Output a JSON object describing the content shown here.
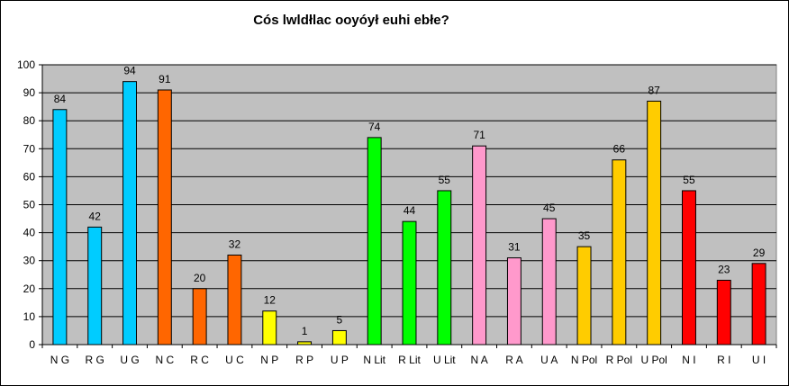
{
  "chart_data": {
    "type": "bar",
    "title": "Cós lwldłlac ooyóył euhi ebłe?",
    "xlabel": "",
    "ylabel": "",
    "ylim": [
      0,
      100
    ],
    "y_ticks": [
      0,
      10,
      20,
      30,
      40,
      50,
      60,
      70,
      80,
      90,
      100
    ],
    "grid": true,
    "legend": "none",
    "plot_background": "#c0c0c0",
    "categories": [
      "N G",
      "R G",
      "U G",
      "N C",
      "R C",
      "U C",
      "N P",
      "R P",
      "U P",
      "N Lit",
      "R Lit",
      "U Lit",
      "N A",
      "R A",
      "U A",
      "N Pol",
      "R Pol",
      "U Pol",
      "N I",
      "R I",
      "U I"
    ],
    "values": [
      84,
      42,
      94,
      91,
      20,
      32,
      12,
      1,
      5,
      74,
      44,
      55,
      71,
      31,
      45,
      35,
      66,
      87,
      55,
      23,
      29
    ],
    "bar_colors": [
      "#00ccff",
      "#00ccff",
      "#00ccff",
      "#ff6600",
      "#ff6600",
      "#ff6600",
      "#ffff00",
      "#ffff00",
      "#ffff00",
      "#00ff00",
      "#00ff00",
      "#00ff00",
      "#ff99cc",
      "#ff99cc",
      "#ff99cc",
      "#ffcc00",
      "#ffcc00",
      "#ffcc00",
      "#ff0000",
      "#ff0000",
      "#ff0000"
    ]
  }
}
